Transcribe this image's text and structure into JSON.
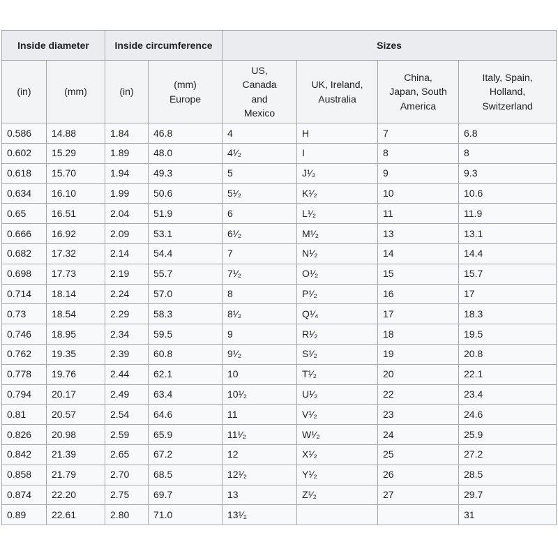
{
  "table": {
    "group_headers": [
      {
        "label": "Inside diameter",
        "colspan": "2"
      },
      {
        "label": "Inside circumference",
        "colspan": "2"
      },
      {
        "label": "Sizes",
        "colspan": "4"
      }
    ],
    "column_headers": [
      "(in)",
      "(mm)",
      "(in)",
      "(mm)\nEurope",
      "US,\nCanada\nand\nMexico",
      "UK, Ireland,\nAustralia",
      "China,\nJapan, South\nAmerica",
      "Italy, Spain,\nHolland,\nSwitzerland"
    ],
    "rows": [
      [
        "0.586",
        "14.88",
        "1.84",
        "46.8",
        "4",
        "H",
        "7",
        "6.8"
      ],
      [
        "0.602",
        "15.29",
        "1.89",
        "48.0",
        "4¹⁄₂",
        "I",
        "8",
        "8"
      ],
      [
        "0.618",
        "15.70",
        "1.94",
        "49.3",
        "5",
        "J¹⁄₂",
        "9",
        "9.3"
      ],
      [
        "0.634",
        "16.10",
        "1.99",
        "50.6",
        "5¹⁄₂",
        "K¹⁄₂",
        "10",
        "10.6"
      ],
      [
        "0.65",
        "16.51",
        "2.04",
        "51.9",
        "6",
        "L¹⁄₂",
        "11",
        "11.9"
      ],
      [
        "0.666",
        "16.92",
        "2.09",
        "53.1",
        "6¹⁄₂",
        "M¹⁄₂",
        "13",
        "13.1"
      ],
      [
        "0.682",
        "17.32",
        "2.14",
        "54.4",
        "7",
        "N¹⁄₂",
        "14",
        "14.4"
      ],
      [
        "0.698",
        "17.73",
        "2.19",
        "55.7",
        "7¹⁄₂",
        "O¹⁄₂",
        "15",
        "15.7"
      ],
      [
        "0.714",
        "18.14",
        "2.24",
        "57.0",
        "8",
        "P¹⁄₂",
        "16",
        "17"
      ],
      [
        "0.73",
        "18.54",
        "2.29",
        "58.3",
        "8¹⁄₂",
        "Q¹⁄₄",
        "17",
        "18.3"
      ],
      [
        "0.746",
        "18.95",
        "2.34",
        "59.5",
        "9",
        "R¹⁄₂",
        "18",
        "19.5"
      ],
      [
        "0.762",
        "19.35",
        "2.39",
        "60.8",
        "9¹⁄₂",
        "S¹⁄₂",
        "19",
        "20.8"
      ],
      [
        "0.778",
        "19.76",
        "2.44",
        "62.1",
        "10",
        "T¹⁄₂",
        "20",
        "22.1"
      ],
      [
        "0.794",
        "20.17",
        "2.49",
        "63.4",
        "10¹⁄₂",
        "U¹⁄₂",
        "22",
        "23.4"
      ],
      [
        "0.81",
        "20.57",
        "2.54",
        "64.6",
        "11",
        "V¹⁄₂",
        "23",
        "24.6"
      ],
      [
        "0.826",
        "20.98",
        "2.59",
        "65.9",
        "11¹⁄₂",
        "W¹⁄₂",
        "24",
        "25.9"
      ],
      [
        "0.842",
        "21.39",
        "2.65",
        "67.2",
        "12",
        "X¹⁄₂",
        "25",
        "27.2"
      ],
      [
        "0.858",
        "21.79",
        "2.70",
        "68.5",
        "12¹⁄₂",
        "Y¹⁄₂",
        "26",
        "28.5"
      ],
      [
        "0.874",
        "22.20",
        "2.75",
        "69.7",
        "13",
        "Z¹⁄₂",
        "27",
        "29.7"
      ],
      [
        "0.89",
        "22.61",
        "2.80",
        "71.0",
        "13¹⁄₂",
        "",
        "",
        "31"
      ]
    ]
  },
  "colors": {
    "border": "#a2a9b1",
    "group_header_bg": "#eaecf0",
    "column_header_bg": "#f3f4f6",
    "cell_bg": "#f8f9fa",
    "text": "#202122"
  }
}
